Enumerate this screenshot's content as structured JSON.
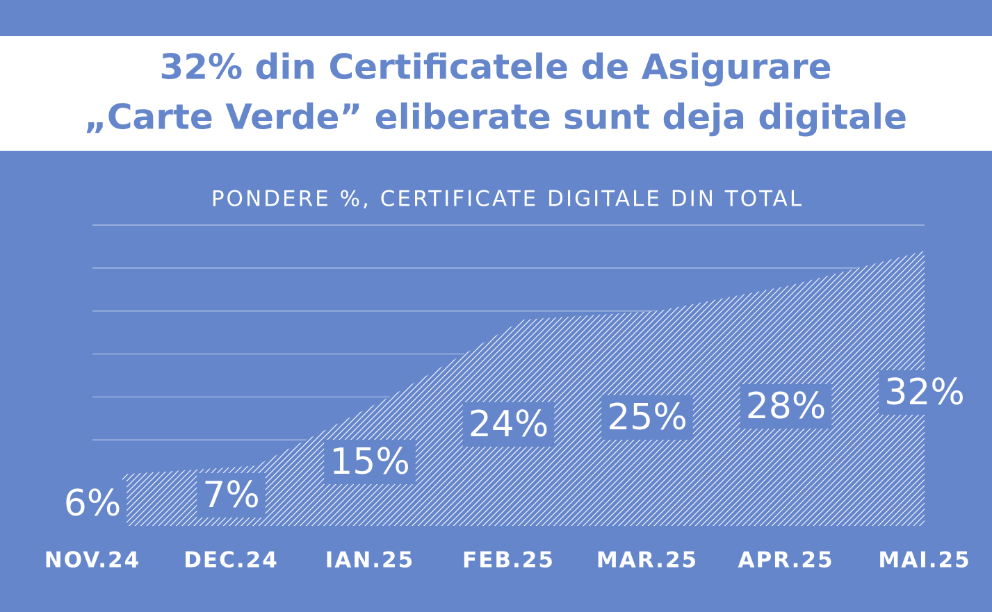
{
  "chart_data": {
    "type": "area",
    "title": [
      "32% din Certificatele de Asigurare",
      "„Carte Verde”  eliberate sunt deja digitale"
    ],
    "subtitle": "PONDERE %, CERTIFICATE DIGITALE DIN TOTAL",
    "categories": [
      "NOV.24",
      "DEC.24",
      "IAN.25",
      "FEB.25",
      "MAR.25",
      "APR.25",
      "MAI.25"
    ],
    "values": [
      6,
      7,
      15,
      24,
      25,
      28,
      32
    ],
    "value_labels": [
      "6%",
      "7%",
      "15%",
      "24%",
      "25%",
      "28%",
      "32%"
    ],
    "color": "#ffffff",
    "ylim": [
      0,
      35
    ],
    "yticks": [
      5,
      10,
      15,
      20,
      25,
      30,
      35
    ],
    "grid": true
  }
}
